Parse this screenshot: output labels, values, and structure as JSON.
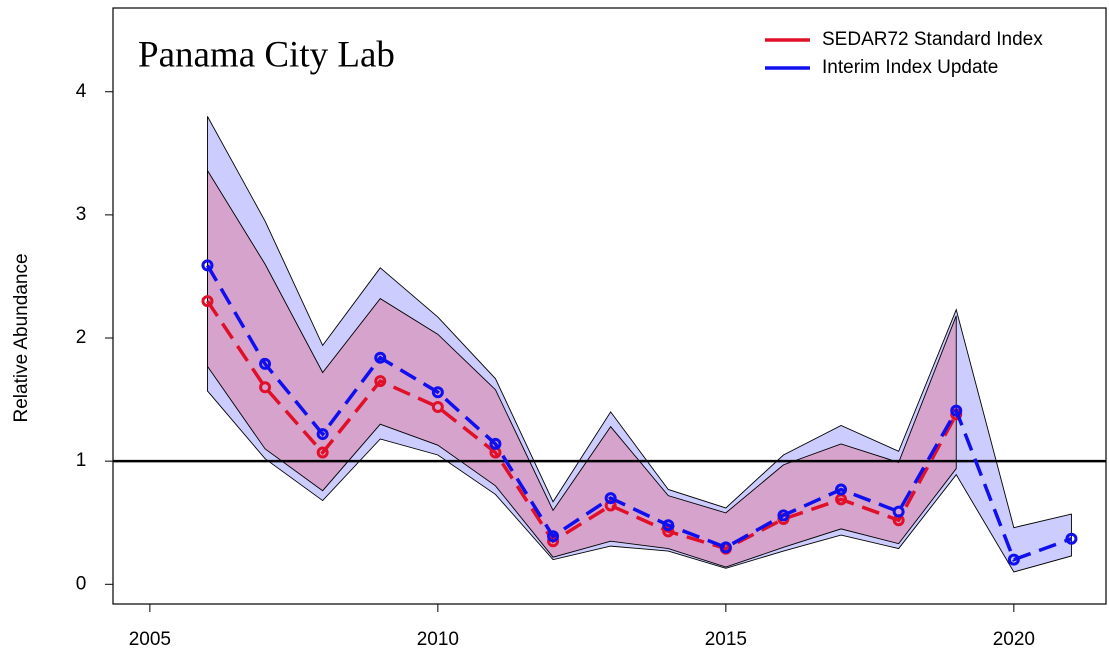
{
  "chart_data": {
    "type": "line",
    "title": "Panama City Lab",
    "y_label": "Relative Abundance",
    "x": [
      2006,
      2007,
      2008,
      2009,
      2010,
      2011,
      2012,
      2013,
      2014,
      2015,
      2016,
      2017,
      2018,
      2019,
      2020,
      2021
    ],
    "series": [
      {
        "name": "SEDAR72 Standard Index",
        "color": "#e0102a",
        "band_color": "rgba(255,0,0,0.2)",
        "values": [
          2.3,
          1.6,
          1.07,
          1.65,
          1.44,
          1.07,
          0.35,
          0.64,
          0.43,
          0.29,
          0.53,
          0.69,
          0.52,
          1.38,
          null,
          null
        ],
        "upper": [
          3.36,
          2.6,
          1.72,
          2.32,
          2.03,
          1.58,
          0.6,
          1.28,
          0.72,
          0.58,
          0.97,
          1.14,
          0.99,
          2.18,
          null,
          null
        ],
        "lower": [
          1.77,
          1.1,
          0.76,
          1.3,
          1.13,
          0.8,
          0.22,
          0.35,
          0.29,
          0.14,
          0.3,
          0.45,
          0.33,
          0.94,
          null,
          null
        ]
      },
      {
        "name": "Interim Index Update",
        "color": "#1010ee",
        "band_color": "rgba(0,0,255,0.2)",
        "values": [
          2.59,
          1.79,
          1.22,
          1.84,
          1.56,
          1.14,
          0.39,
          0.7,
          0.48,
          0.3,
          0.56,
          0.77,
          0.59,
          1.41,
          0.2,
          0.37
        ],
        "upper": [
          3.8,
          2.95,
          1.94,
          2.57,
          2.17,
          1.67,
          0.67,
          1.4,
          0.77,
          0.62,
          1.05,
          1.29,
          1.08,
          2.23,
          0.46,
          0.57
        ],
        "lower": [
          1.57,
          1.02,
          0.68,
          1.18,
          1.05,
          0.73,
          0.2,
          0.31,
          0.27,
          0.13,
          0.27,
          0.4,
          0.29,
          0.89,
          0.1,
          0.23
        ]
      }
    ],
    "reference_line": 1,
    "xlim": [
      2004.36,
      2021.6
    ],
    "xticks": [
      2005,
      2010,
      2015,
      2020
    ],
    "ylim": [
      -0.16,
      4.68
    ],
    "yticks": [
      0,
      1,
      2,
      3,
      4
    ],
    "grid": false,
    "legend": "top-right"
  }
}
